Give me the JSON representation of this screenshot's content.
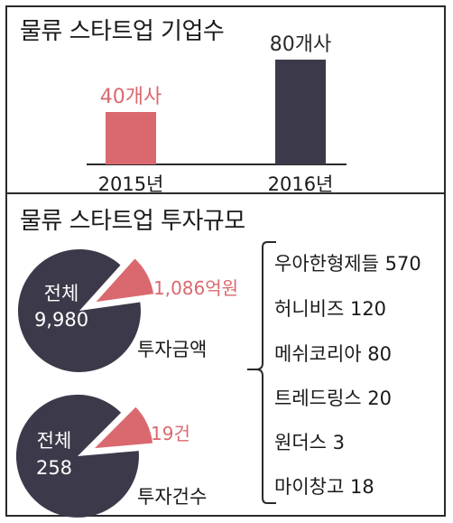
{
  "colors": {
    "accent": "#d9696f",
    "dark": "#3c3a4a",
    "line": "#2a2a2a"
  },
  "chart_data": [
    {
      "type": "bar",
      "title": "물류 스타트업 기업수",
      "categories": [
        "2015년",
        "2016년"
      ],
      "values": [
        40,
        80
      ],
      "data_labels": [
        "40개사",
        "80개사"
      ],
      "unit": "개사",
      "ylim": [
        0,
        80
      ]
    },
    {
      "type": "pie",
      "title": "물류 스타트업 투자규모",
      "charts": [
        {
          "name": "투자금액",
          "total_label": "전체",
          "total_value": "9,980",
          "slice_label": "1,086억원",
          "total": 9980,
          "slice": 1086
        },
        {
          "name": "투자건수",
          "total_label": "전체",
          "total_value": "258",
          "slice_label": "19건",
          "total": 258,
          "slice": 19
        }
      ],
      "breakdown": [
        "우아한형제들 570",
        "허니비즈 120",
        "메쉬코리아 80",
        "트레드링스 20",
        "원더스 3",
        "마이창고 18"
      ]
    }
  ]
}
